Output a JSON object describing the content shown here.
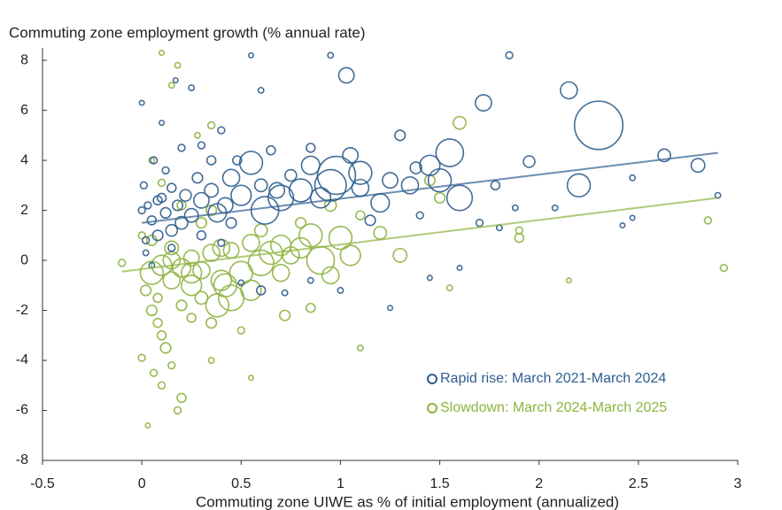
{
  "chart_data": {
    "type": "scatter",
    "title": "Commuting zone employment growth (% annual rate)",
    "x_label": "Commuting zone UIWE as % of initial employment (annualized)",
    "xlim": [
      -0.5,
      3
    ],
    "xticks": [
      -0.5,
      0,
      0.5,
      1,
      1.5,
      2,
      2.5,
      3
    ],
    "ylim": [
      -8,
      8.5
    ],
    "yticks": [
      -8,
      -6,
      -4,
      -2,
      0,
      2,
      4,
      6,
      8
    ],
    "legend": "lower right",
    "series": [
      {
        "name": "Rapid rise: March 2021-March 2024",
        "color": "#2e5d8e",
        "x": [
          2.3,
          2.2,
          2.15,
          2.63,
          2.8,
          1.95,
          1.85,
          1.72,
          1.55,
          1.6,
          1.45,
          1.5,
          1.35,
          1.25,
          1.2,
          1.3,
          1.03,
          0.98,
          0.95,
          1.1,
          1.05,
          0.9,
          0.85,
          0.8,
          0.7,
          0.62,
          0.55,
          0.5,
          0.45,
          0.42,
          0.38,
          0.35,
          0.3,
          0.28,
          0.25,
          0.22,
          0.2,
          0.18,
          0.15,
          0.12,
          0.1,
          0.08,
          0.05,
          0.03,
          0.02,
          0.01,
          0.0,
          0.06,
          0.1,
          0.0,
          0.12,
          0.2,
          0.3,
          0.4,
          0.25,
          0.17,
          0.55,
          0.6,
          0.95,
          0.48,
          0.65,
          0.75,
          0.85,
          1.15,
          1.4,
          1.7,
          1.45,
          1.6,
          1.25,
          1.0,
          0.85,
          0.72,
          0.6,
          0.5,
          2.42,
          2.47,
          2.47,
          2.08,
          1.88,
          2.9,
          1.8,
          0.02,
          0.05,
          0.15,
          0.3,
          0.4,
          0.35,
          0.15,
          0.08,
          0.45,
          0.6,
          0.68,
          1.78,
          1.38,
          1.1
        ],
        "values": [
          5.4,
          3.0,
          6.8,
          4.2,
          3.8,
          3.95,
          8.2,
          6.3,
          4.3,
          2.5,
          3.8,
          3.2,
          3.0,
          3.2,
          2.3,
          5.0,
          7.4,
          3.4,
          3.0,
          3.5,
          4.2,
          2.5,
          3.8,
          2.8,
          2.5,
          2.0,
          3.9,
          2.6,
          3.3,
          2.2,
          1.9,
          2.8,
          2.4,
          3.3,
          1.8,
          2.6,
          1.5,
          2.2,
          1.2,
          1.9,
          2.5,
          1.0,
          1.6,
          2.2,
          0.8,
          3.0,
          2.0,
          4.0,
          5.5,
          6.3,
          3.6,
          4.5,
          4.6,
          5.2,
          6.9,
          7.2,
          8.2,
          6.8,
          8.2,
          4.0,
          4.4,
          3.4,
          4.5,
          1.6,
          1.8,
          1.5,
          -0.7,
          -0.3,
          -1.9,
          -1.2,
          -0.8,
          -1.3,
          -1.2,
          -0.9,
          1.4,
          1.7,
          3.3,
          2.1,
          2.1,
          2.6,
          1.3,
          0.3,
          -0.2,
          0.5,
          1.0,
          0.7,
          4.0,
          2.9,
          2.4,
          1.5,
          3.0,
          2.8,
          3.0,
          3.7,
          2.9
        ],
        "sizes": [
          100,
          20,
          10,
          5,
          6,
          4,
          1,
          9,
          30,
          25,
          15,
          20,
          10,
          8,
          12,
          3,
          8,
          60,
          40,
          20,
          8,
          15,
          12,
          20,
          25,
          30,
          20,
          15,
          10,
          8,
          12,
          6,
          8,
          3,
          6,
          4,
          5,
          3,
          4,
          3,
          2,
          3,
          2,
          1,
          1,
          1,
          1,
          1,
          0.3,
          0.3,
          1,
          1,
          1,
          1,
          0.5,
          0.3,
          0.3,
          0.5,
          0.5,
          2,
          2,
          4,
          2,
          3,
          1,
          1,
          0.3,
          0.3,
          0.3,
          0.5,
          0.5,
          0.5,
          2,
          0.5,
          0.3,
          0.3,
          0.5,
          0.5,
          0.5,
          0.5,
          0.5,
          0.5,
          0.5,
          1,
          2,
          1,
          2,
          2,
          2,
          3,
          5,
          8,
          2,
          4,
          10
        ],
        "trend_x": [
          0,
          2.9
        ],
        "trend_y": [
          1.5,
          4.3
        ]
      },
      {
        "name": "Slowdown: March 2024-March 2025",
        "color": "#8db33f",
        "x": [
          0.05,
          0.1,
          0.15,
          0.2,
          0.25,
          0.3,
          0.38,
          0.4,
          0.45,
          0.5,
          0.55,
          0.6,
          0.65,
          0.7,
          0.75,
          0.8,
          0.85,
          0.9,
          0.95,
          1.0,
          1.05,
          0.55,
          0.45,
          0.35,
          0.25,
          0.15,
          0.05,
          0.0,
          -0.1,
          0.02,
          0.05,
          0.08,
          0.1,
          0.12,
          0.06,
          0.1,
          0.2,
          0.18,
          0.03,
          0.0,
          0.15,
          0.25,
          0.35,
          0.3,
          0.2,
          0.08,
          0.5,
          0.55,
          0.35,
          0.1,
          0.15,
          0.18,
          0.28,
          0.35,
          0.05,
          0.1,
          0.2,
          0.3,
          1.2,
          1.3,
          1.5,
          1.6,
          1.45,
          1.9,
          1.1,
          1.55,
          2.15,
          2.85,
          2.93,
          1.9,
          0.7,
          0.72,
          0.85,
          0.25,
          0.15,
          0.4,
          0.6,
          0.95,
          0.8,
          1.1,
          0.35,
          0.42
        ],
        "values": [
          -0.5,
          -0.2,
          -0.8,
          -0.3,
          -1.0,
          -0.4,
          -1.8,
          -0.8,
          -1.5,
          -0.5,
          -1.2,
          -0.1,
          0.3,
          0.6,
          0.2,
          0.5,
          1.0,
          0.0,
          -0.6,
          0.9,
          0.2,
          0.7,
          0.4,
          0.3,
          0.1,
          0.5,
          0.8,
          1.0,
          -0.1,
          -1.2,
          -2.0,
          -2.5,
          -3.0,
          -3.5,
          -4.5,
          -5.0,
          -5.5,
          -6.0,
          -6.6,
          -3.9,
          -4.2,
          -2.3,
          -2.5,
          -1.5,
          -1.8,
          -1.5,
          -2.8,
          -4.7,
          -4.0,
          8.3,
          7.0,
          7.8,
          5.0,
          5.4,
          4.0,
          3.1,
          2.2,
          1.5,
          1.1,
          0.2,
          2.5,
          5.5,
          3.2,
          0.9,
          -3.5,
          -1.1,
          -0.8,
          1.6,
          -0.3,
          1.2,
          -0.5,
          -2.2,
          -1.9,
          -0.5,
          0.0,
          0.5,
          1.2,
          2.2,
          1.5,
          1.8,
          2.0,
          -1.0
        ],
        "sizes": [
          20,
          15,
          10,
          12,
          15,
          10,
          20,
          15,
          25,
          20,
          15,
          25,
          20,
          15,
          10,
          15,
          20,
          30,
          10,
          20,
          15,
          10,
          8,
          10,
          8,
          6,
          3,
          1,
          1,
          3,
          3,
          2,
          2,
          3,
          1,
          1,
          2,
          1,
          0.3,
          1,
          1,
          2,
          3,
          5,
          3,
          2,
          1,
          0.3,
          0.5,
          0.3,
          0.5,
          0.5,
          0.5,
          1,
          0.5,
          1,
          2,
          3,
          5,
          6,
          3,
          5,
          3,
          2,
          0.5,
          0.5,
          0.3,
          1,
          1,
          1,
          10,
          3,
          2,
          15,
          10,
          10,
          5,
          4,
          3,
          2,
          3,
          20
        ],
        "trend_x": [
          -0.1,
          2.9
        ],
        "trend_y": [
          -0.45,
          2.5
        ]
      }
    ]
  }
}
